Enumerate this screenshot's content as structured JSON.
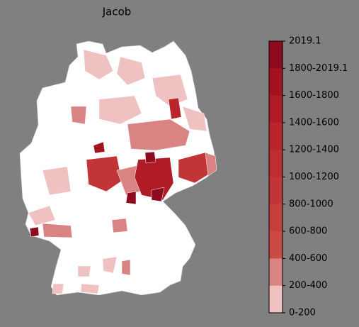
{
  "title": "Jacob",
  "legend": {
    "labels": [
      "2019.1",
      "1800-2019.1",
      "1600-1800",
      "1400-1600",
      "1200-1400",
      "1000-1200",
      "800-1000",
      "600-800",
      "400-600",
      "200-400",
      "0-200"
    ],
    "colors": [
      "#8e0b1f",
      "#a3131f",
      "#b01c25",
      "#b8252b",
      "#bd2d31",
      "#c23536",
      "#c73f3d",
      "#cb4a46",
      "#d98383",
      "#efc1c1",
      "#ffffff"
    ]
  }
}
